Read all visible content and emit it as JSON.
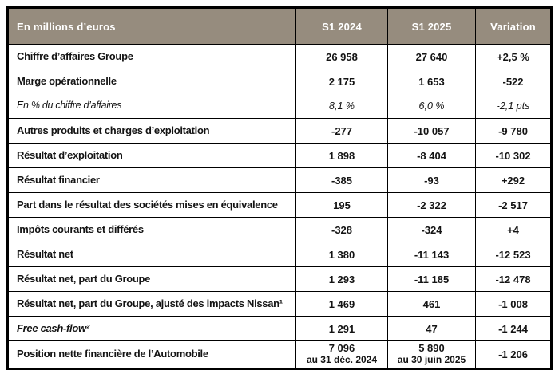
{
  "table": {
    "header": {
      "col_label": "En millions d’euros",
      "col_2024": "S1 2024",
      "col_2025": "S1 2025",
      "col_variation": "Variation"
    },
    "colors": {
      "header_bg": "#968C7E",
      "header_text": "#FFFFFF",
      "border": "#000000",
      "body_text": "#141414"
    },
    "rows": [
      {
        "label": "Chiffre d’affaires Groupe",
        "v2024": "26 958",
        "v2025": "27 640",
        "variation": "+2,5 %"
      },
      {
        "label": "Marge opérationnelle",
        "v2024": "2 175",
        "v2025": "1 653",
        "variation": "-522"
      },
      {
        "label": "En % du chiffre d’affaires",
        "v2024": "8,1 %",
        "v2025": "6,0 %",
        "variation": "-2,1 pts"
      },
      {
        "label": "Autres produits et charges d’exploitation",
        "v2024": "-277",
        "v2025": "-10 057",
        "variation": "-9 780"
      },
      {
        "label": "Résultat d’exploitation",
        "v2024": "1 898",
        "v2025": "-8 404",
        "variation": "-10 302"
      },
      {
        "label": "Résultat financier",
        "v2024": "-385",
        "v2025": "-93",
        "variation": "+292"
      },
      {
        "label": "Part dans le résultat des sociétés mises en équivalence",
        "v2024": "195",
        "v2025": "-2 322",
        "variation": "-2 517"
      },
      {
        "label": "Impôts courants et différés",
        "v2024": "-328",
        "v2025": "-324",
        "variation": "+4"
      },
      {
        "label": "Résultat net",
        "v2024": "1 380",
        "v2025": "-11 143",
        "variation": "-12 523"
      },
      {
        "label": "Résultat net, part du Groupe",
        "v2024": "1 293",
        "v2025": "-11 185",
        "variation": "-12 478"
      },
      {
        "label": "Résultat net, part du Groupe, ajusté des impacts Nissan¹",
        "v2024": "1 469",
        "v2025": "461",
        "variation": "-1 008"
      },
      {
        "label": "Free cash-flow²",
        "v2024": "1 291",
        "v2025": "47",
        "variation": "-1 244"
      },
      {
        "label": "Position nette financière de l’Automobile",
        "v2024": "7 096",
        "v2024_sub": "au 31 déc. 2024",
        "v2025": "5 890",
        "v2025_sub": "au 30 juin 2025",
        "variation": "-1 206"
      }
    ]
  }
}
